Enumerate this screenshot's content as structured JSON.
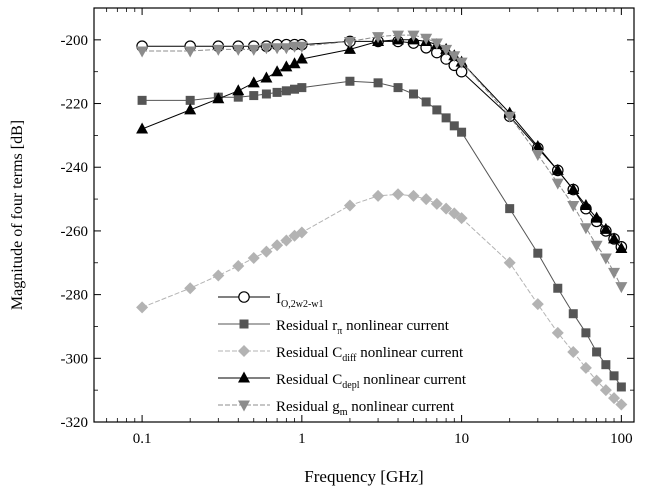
{
  "chart_data": {
    "type": "line",
    "xlabel": "Frequency [GHz]",
    "ylabel": "Magnitude of four terms [dB]",
    "xscale": "log",
    "xlim": [
      0.05,
      120
    ],
    "ylim": [
      -320,
      -190
    ],
    "xticks": [
      {
        "value": 0.1,
        "label": "0.1"
      },
      {
        "value": 1,
        "label": "1"
      },
      {
        "value": 10,
        "label": "10"
      },
      {
        "value": 100,
        "label": "100"
      }
    ],
    "yticks": [
      {
        "value": -200,
        "label": "-200"
      },
      {
        "value": -220,
        "label": "-220"
      },
      {
        "value": -240,
        "label": "-240"
      },
      {
        "value": -260,
        "label": "-260"
      },
      {
        "value": -280,
        "label": "-280"
      },
      {
        "value": -300,
        "label": "-300"
      },
      {
        "value": -320,
        "label": "-320"
      }
    ],
    "legend_position": "bottom-left",
    "series": [
      {
        "name": "I_{O,2w2-w1}",
        "label_main": "I",
        "label_sub": "O,2w2-w1",
        "label_rest": "",
        "marker": "circle-open",
        "color": "#000000",
        "dashed": false,
        "x": [
          0.1,
          0.2,
          0.3,
          0.4,
          0.5,
          0.6,
          0.7,
          0.8,
          0.9,
          1,
          2,
          3,
          4,
          5,
          6,
          7,
          8,
          9,
          10,
          20,
          30,
          40,
          50,
          60,
          70,
          80,
          90,
          100
        ],
        "y": [
          -202,
          -202,
          -202,
          -202,
          -202,
          -202,
          -201.5,
          -201.5,
          -201.5,
          -201.5,
          -200.5,
          -200.5,
          -200.5,
          -201,
          -202.5,
          -204,
          -206,
          -208,
          -210,
          -224,
          -234,
          -241,
          -247,
          -253,
          -257,
          -260,
          -262.5,
          -265
        ]
      },
      {
        "name": "Residual r_π nonlinear current",
        "label_main": "Residual r",
        "label_sub": "π",
        "label_rest": " nonlinear current",
        "marker": "square",
        "color": "#555555",
        "dashed": false,
        "x": [
          0.1,
          0.2,
          0.3,
          0.4,
          0.5,
          0.6,
          0.7,
          0.8,
          0.9,
          1,
          2,
          3,
          4,
          5,
          6,
          7,
          8,
          9,
          10,
          20,
          30,
          40,
          50,
          60,
          70,
          80,
          90,
          100
        ],
        "y": [
          -219,
          -219,
          -218,
          -218,
          -217.5,
          -217,
          -216.5,
          -216,
          -215.5,
          -215,
          -213,
          -213.5,
          -215,
          -217,
          -219.5,
          -222,
          -224.5,
          -227,
          -229,
          -253,
          -267,
          -278,
          -286,
          -292,
          -298,
          -302,
          -305.5,
          -309
        ]
      },
      {
        "name": "Residual C_diff nonlinear current",
        "label_main": "Residual C",
        "label_sub": "diff",
        "label_rest": " nonlinear current",
        "marker": "diamond",
        "color": "#b3b3b3",
        "dashed": true,
        "x": [
          0.1,
          0.2,
          0.3,
          0.4,
          0.5,
          0.6,
          0.7,
          0.8,
          0.9,
          1,
          2,
          3,
          4,
          5,
          6,
          7,
          8,
          9,
          10,
          20,
          30,
          40,
          50,
          60,
          70,
          80,
          90,
          100
        ],
        "y": [
          -284,
          -278,
          -274,
          -271,
          -268.5,
          -266.5,
          -264.5,
          -263,
          -261.5,
          -260.5,
          -252,
          -249,
          -248.5,
          -249,
          -250,
          -251.5,
          -253,
          -254.5,
          -256,
          -270,
          -283,
          -292,
          -298,
          -303,
          -307,
          -310,
          -312.5,
          -314.5
        ]
      },
      {
        "name": "Residual C_depl nonlinear current",
        "label_main": "Residual C",
        "label_sub": "depl",
        "label_rest": " nonlinear current",
        "marker": "triangle-up",
        "color": "#000000",
        "dashed": false,
        "x": [
          0.1,
          0.2,
          0.3,
          0.4,
          0.5,
          0.6,
          0.7,
          0.8,
          0.9,
          1,
          2,
          3,
          4,
          5,
          6,
          7,
          8,
          9,
          10,
          20,
          30,
          40,
          50,
          60,
          70,
          80,
          90,
          100
        ],
        "y": [
          -228,
          -222,
          -218.5,
          -216,
          -213.5,
          -212,
          -210,
          -208.5,
          -207.5,
          -206,
          -203,
          -200.5,
          -200,
          -200,
          -200.5,
          -201.5,
          -203,
          -205,
          -207,
          -223,
          -233.5,
          -241,
          -247,
          -252,
          -256,
          -259.5,
          -262.5,
          -265.5
        ]
      },
      {
        "name": "Residual g_m nonlinear current",
        "label_main": "Residual g",
        "label_sub": "m",
        "label_rest": " nonlinear current",
        "marker": "triangle-down",
        "color": "#8c8c8c",
        "dashed": true,
        "x": [
          0.1,
          0.2,
          0.3,
          0.4,
          0.5,
          0.6,
          0.7,
          0.8,
          0.9,
          1,
          2,
          3,
          4,
          5,
          6,
          7,
          8,
          9,
          10,
          20,
          30,
          40,
          50,
          60,
          70,
          80,
          90,
          100
        ],
        "y": [
          -203.5,
          -203.5,
          -203,
          -203,
          -203,
          -202.5,
          -202.5,
          -202.5,
          -202,
          -202,
          -200.5,
          -199,
          -198.5,
          -198.5,
          -199.5,
          -201,
          -203,
          -205,
          -207,
          -224,
          -236,
          -245,
          -252,
          -259,
          -264.5,
          -268.5,
          -273,
          -277.5
        ]
      }
    ]
  }
}
